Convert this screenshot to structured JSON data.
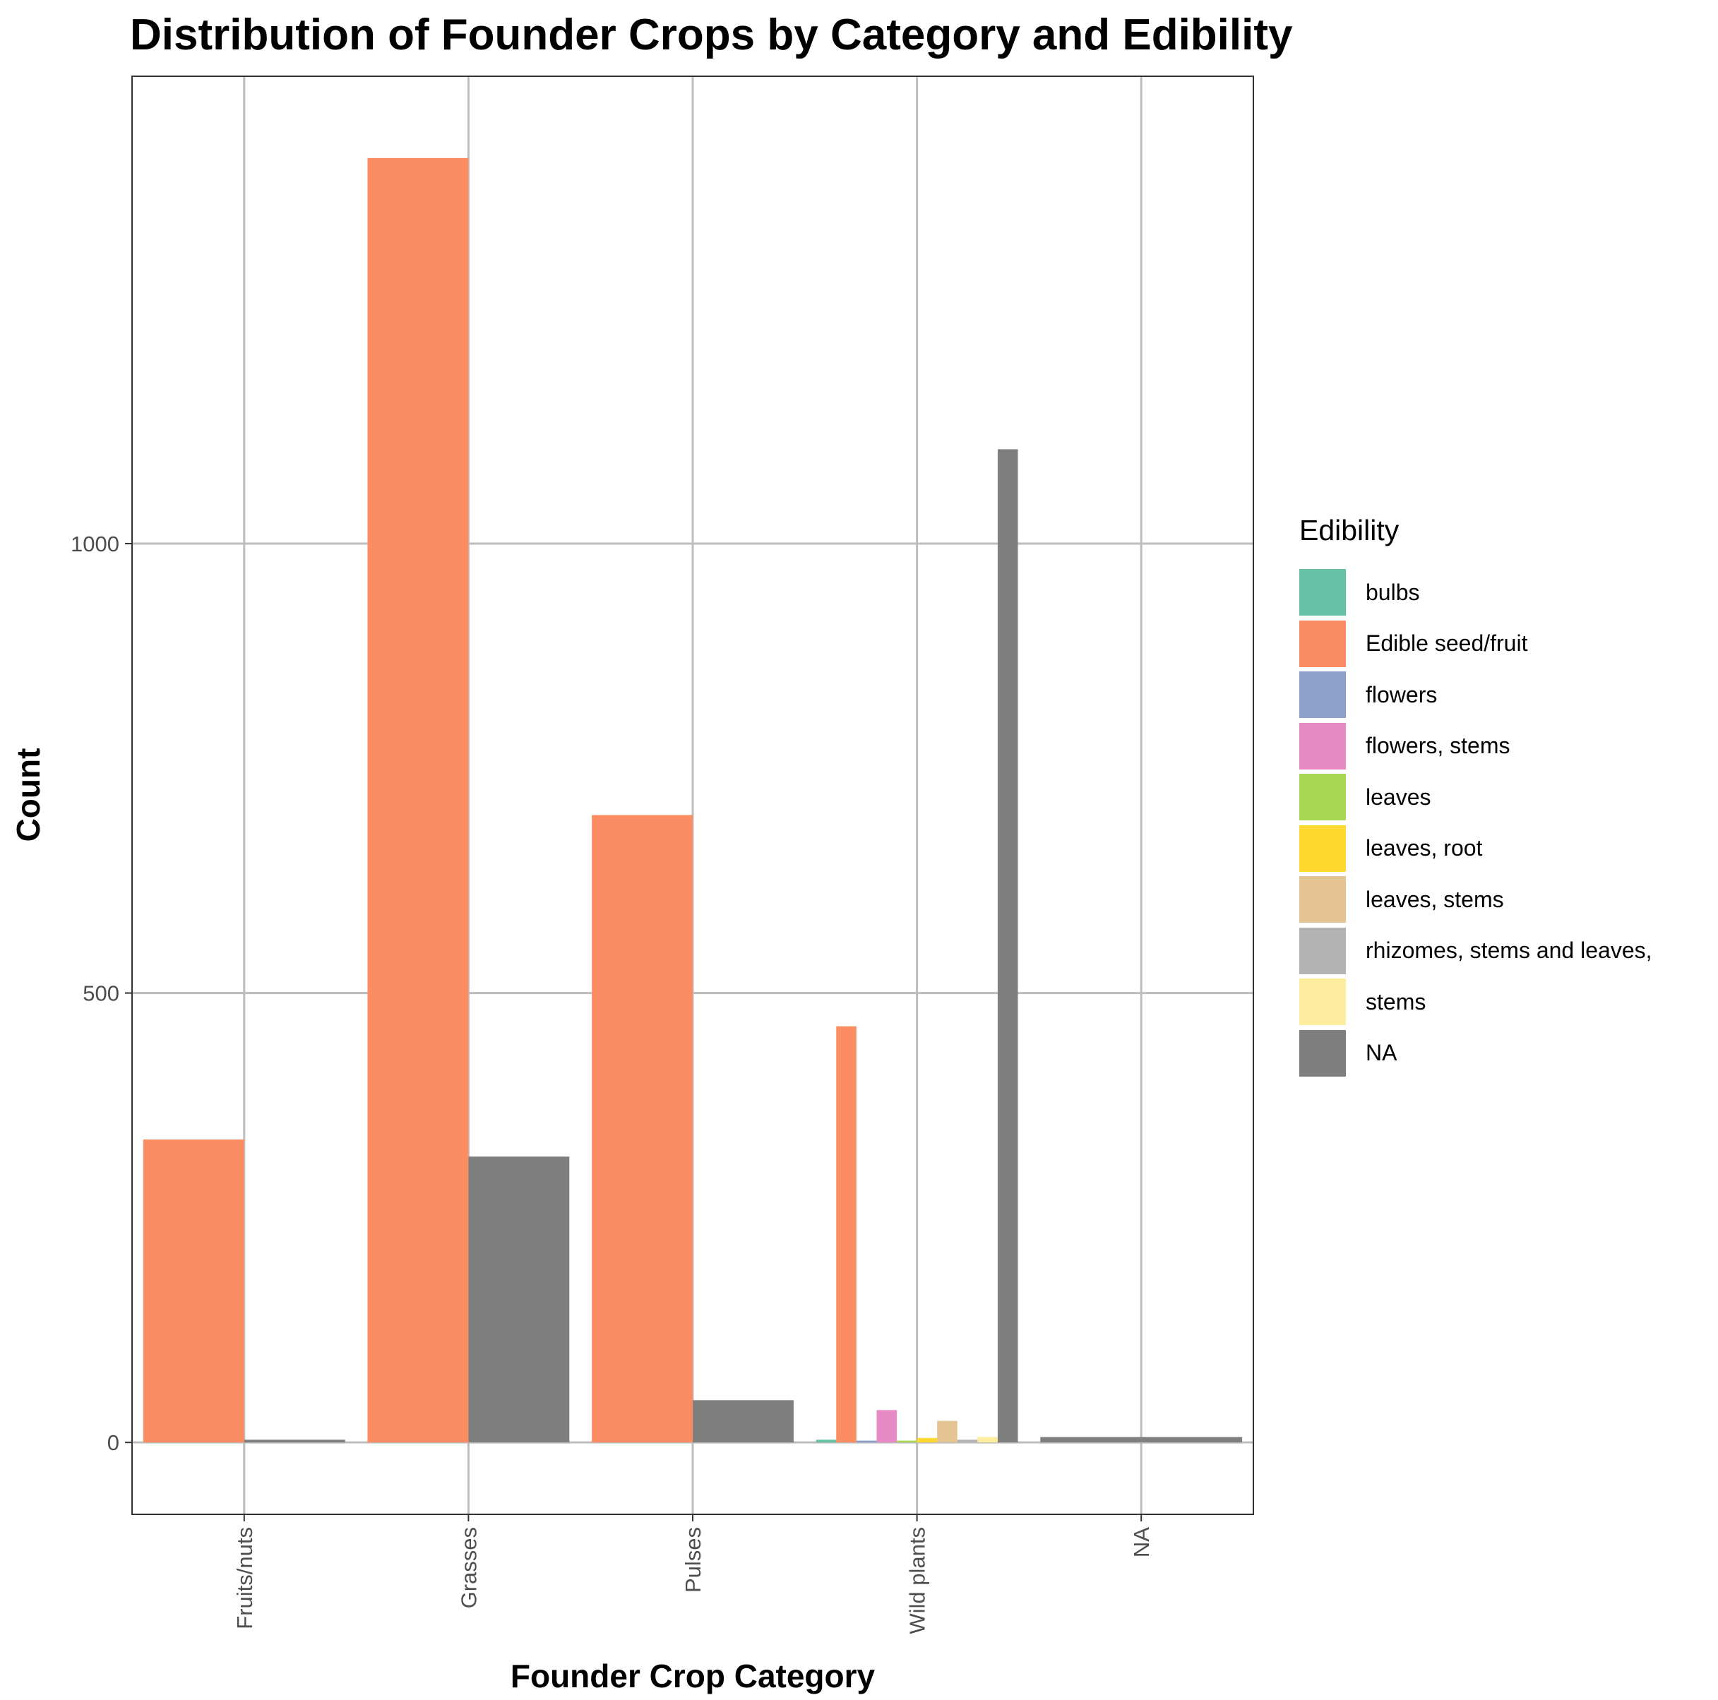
{
  "chart_data": {
    "type": "bar",
    "title": "Distribution of Founder Crops by Category and Edibility",
    "xlabel": "Founder Crop Category",
    "ylabel": "Count",
    "categories": [
      "Fruits/nuts",
      "Grasses",
      "Pulses",
      "Wild plants",
      "NA"
    ],
    "ylim": [
      -80,
      1520
    ],
    "yticks": [
      0,
      500,
      1000
    ],
    "grid": true,
    "legend_title": "Edibility",
    "legend_position": "right",
    "series": [
      {
        "name": "bulbs",
        "color": "#66C2A5",
        "values": [
          null,
          null,
          null,
          3,
          null
        ]
      },
      {
        "name": "Edible seed/fruit",
        "color": "#FC8D62",
        "values": [
          337,
          1429,
          698,
          463,
          null
        ]
      },
      {
        "name": "flowers",
        "color": "#8DA0CB",
        "values": [
          null,
          null,
          null,
          2,
          null
        ]
      },
      {
        "name": "flowers, stems",
        "color": "#E78AC3",
        "values": [
          null,
          null,
          null,
          36,
          null
        ]
      },
      {
        "name": "leaves",
        "color": "#A6D854",
        "values": [
          null,
          null,
          null,
          2,
          null
        ]
      },
      {
        "name": "leaves, root",
        "color": "#FFD92F",
        "values": [
          null,
          null,
          null,
          5,
          null
        ]
      },
      {
        "name": "leaves, stems",
        "color": "#E5C494",
        "values": [
          null,
          null,
          null,
          24,
          null
        ]
      },
      {
        "name": "rhizomes, stems and leaves,",
        "color": "#B3B3B3",
        "values": [
          null,
          null,
          null,
          3,
          null
        ]
      },
      {
        "name": "stems",
        "color": "#FFED9F",
        "values": [
          null,
          null,
          null,
          6,
          null
        ]
      },
      {
        "name": "NA",
        "color": "#7F7F7F",
        "values": [
          3,
          318,
          47,
          1105,
          6
        ]
      }
    ]
  }
}
